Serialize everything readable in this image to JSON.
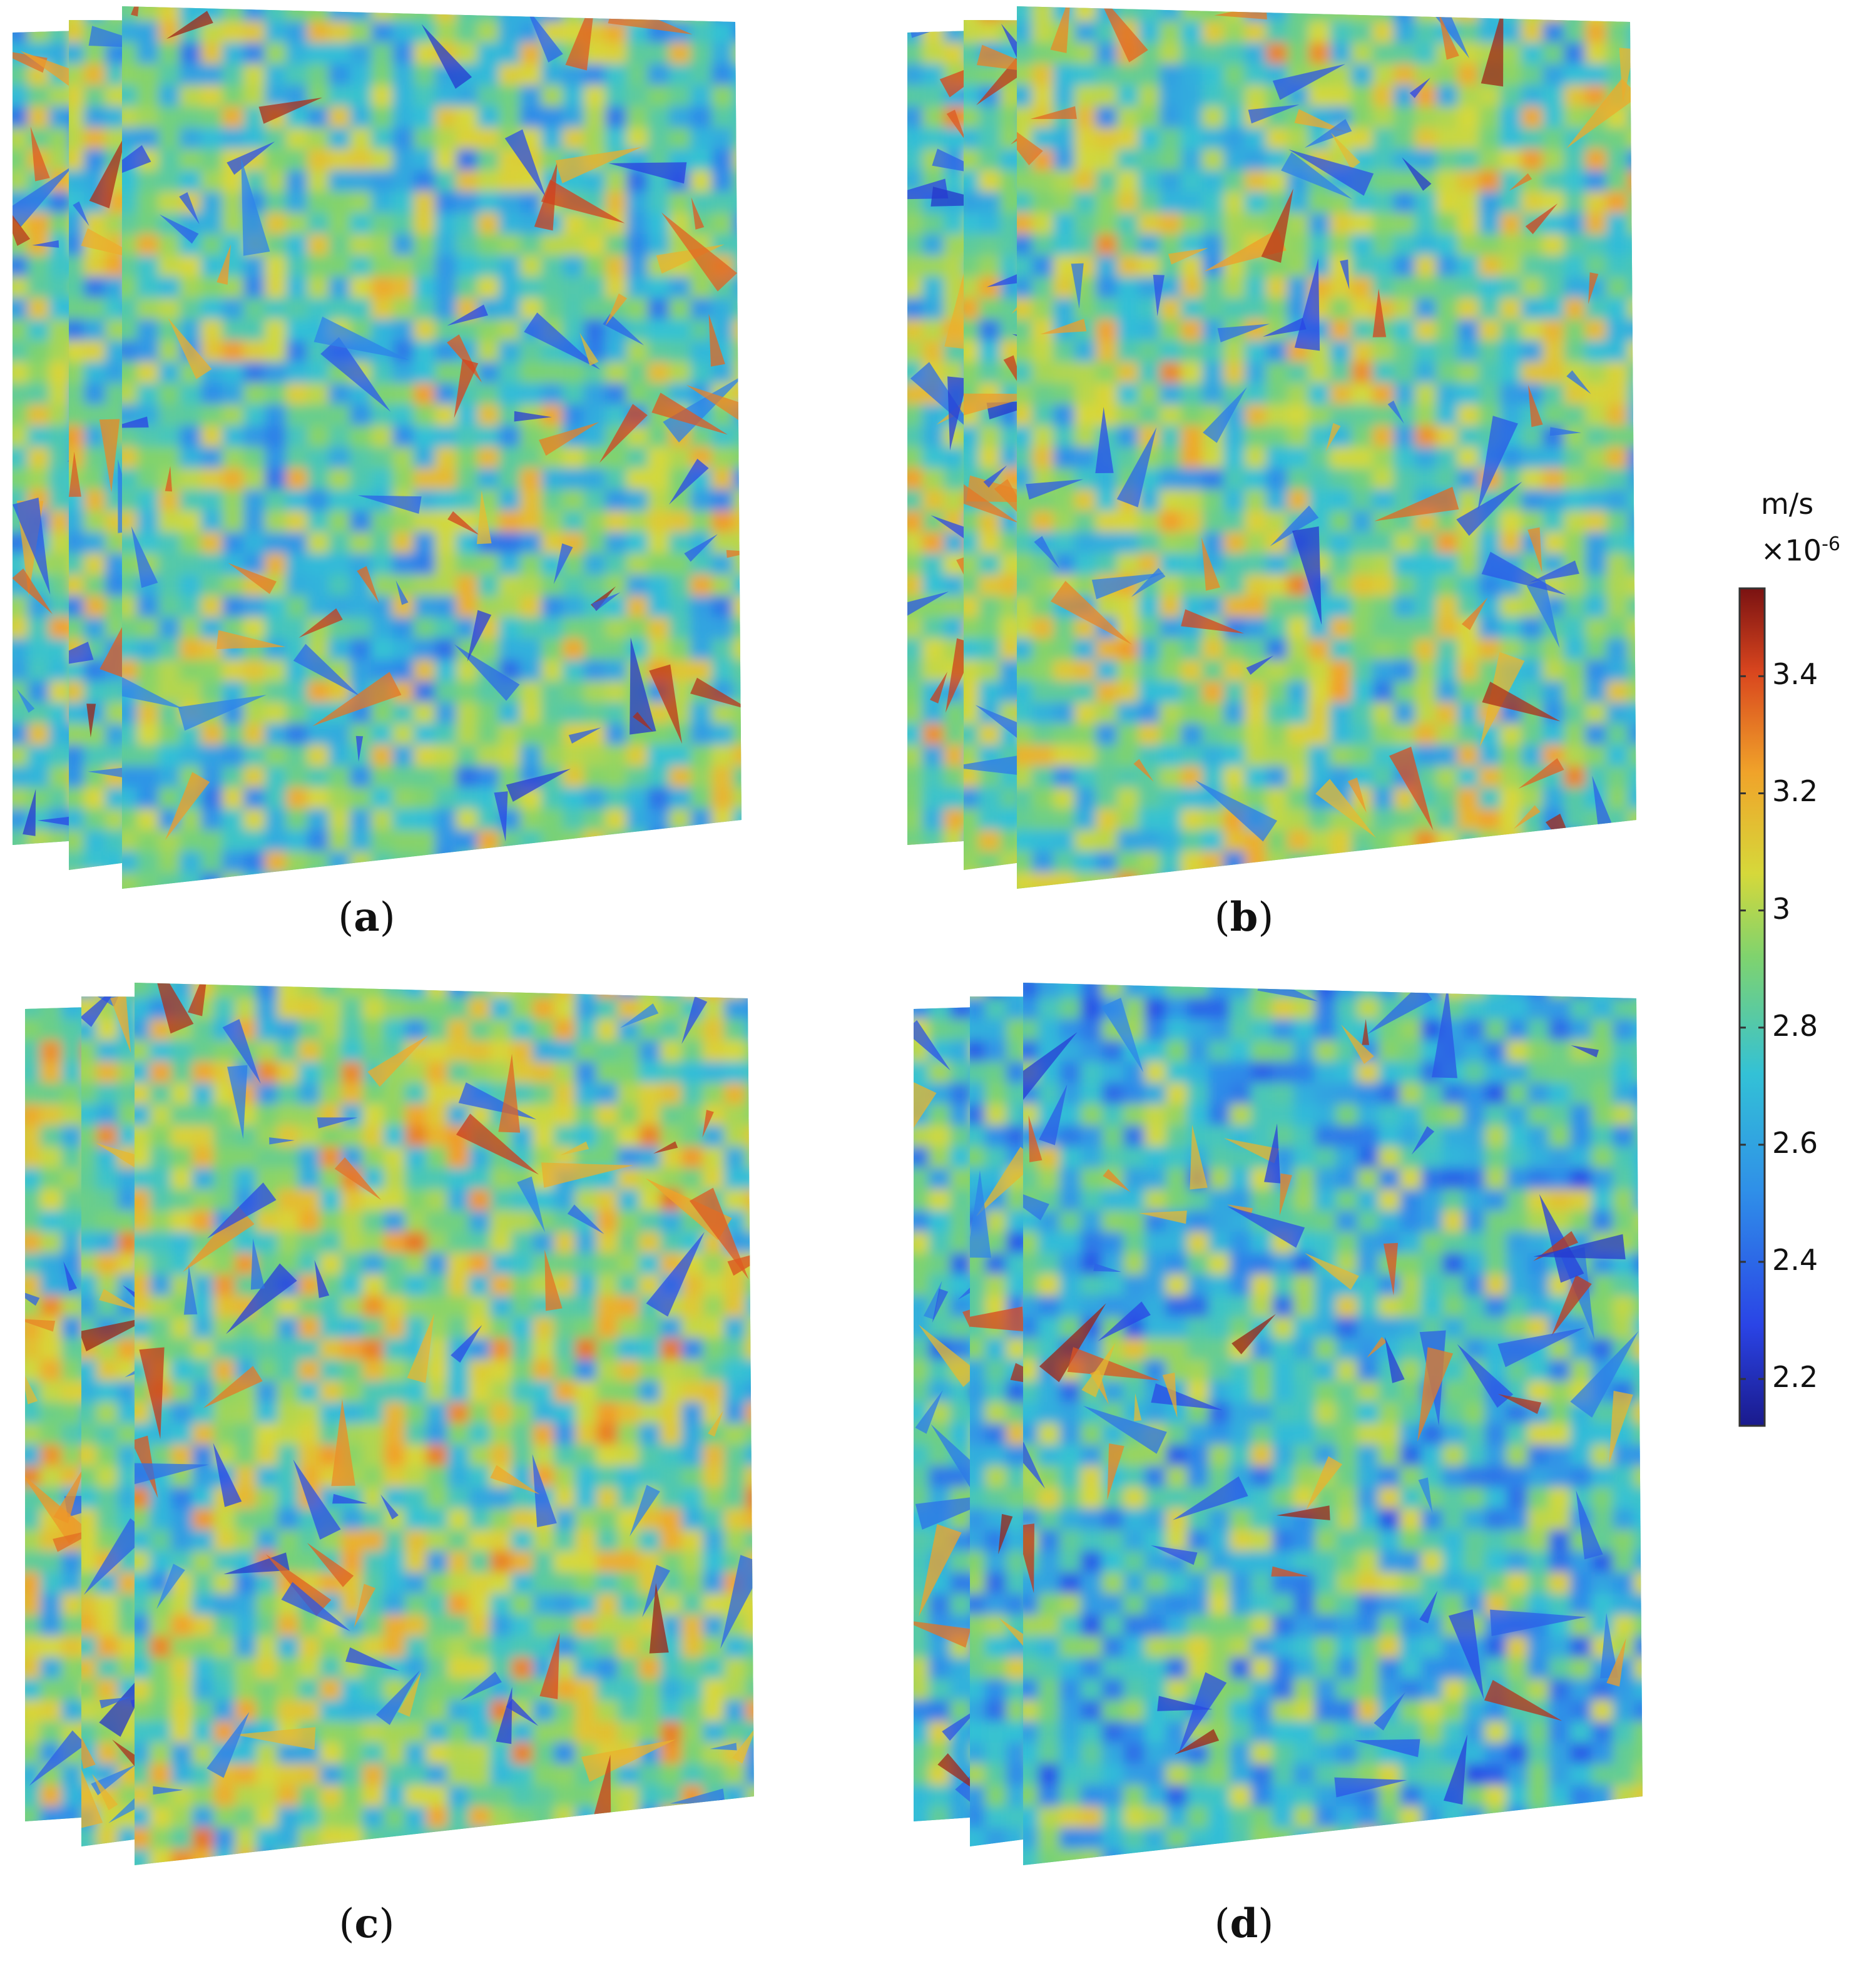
{
  "chart_data": [
    {
      "type": "heatmap",
      "panel": "(a)",
      "quantity_unit": "m/s",
      "scale_factor": "×10⁻⁶",
      "colorbar_range": [
        2.12,
        3.55
      ],
      "colorbar_ticks": [
        2.2,
        2.4,
        2.6,
        2.8,
        3,
        3.2,
        3.4
      ],
      "seed": 11,
      "bias": 0.0
    },
    {
      "type": "heatmap",
      "panel": "(b)",
      "quantity_unit": "m/s",
      "scale_factor": "×10⁻⁶",
      "colorbar_range": [
        2.12,
        3.55
      ],
      "colorbar_ticks": [
        2.2,
        2.4,
        2.6,
        2.8,
        3,
        3.2,
        3.4
      ],
      "seed": 23,
      "bias": 0.03
    },
    {
      "type": "heatmap",
      "panel": "(c)",
      "quantity_unit": "m/s",
      "scale_factor": "×10⁻⁶",
      "colorbar_range": [
        2.12,
        3.55
      ],
      "colorbar_ticks": [
        2.2,
        2.4,
        2.6,
        2.8,
        3,
        3.2,
        3.4
      ],
      "seed": 37,
      "bias": 0.05
    },
    {
      "type": "heatmap",
      "panel": "(d)",
      "quantity_unit": "m/s",
      "scale_factor": "×10⁻⁶",
      "colorbar_range": [
        2.12,
        3.55
      ],
      "colorbar_ticks": [
        2.2,
        2.4,
        2.6,
        2.8,
        3,
        3.2,
        3.4
      ],
      "seed": 53,
      "bias": -0.06
    }
  ],
  "captions": {
    "a": "a",
    "b": "b",
    "c": "c",
    "d": "d"
  },
  "colorbar": {
    "unit": "m/s",
    "exponent_base": "×10",
    "exponent": "-6",
    "tick_labels": [
      "3.4",
      "3.2",
      "3",
      "2.8",
      "2.6",
      "2.4",
      "2.2"
    ],
    "colormap": [
      "#1a1a8c",
      "#2a44e6",
      "#2f8fe8",
      "#33c1d6",
      "#7fd36e",
      "#d6d83a",
      "#f0a32a",
      "#d9461e",
      "#7a1212"
    ]
  }
}
